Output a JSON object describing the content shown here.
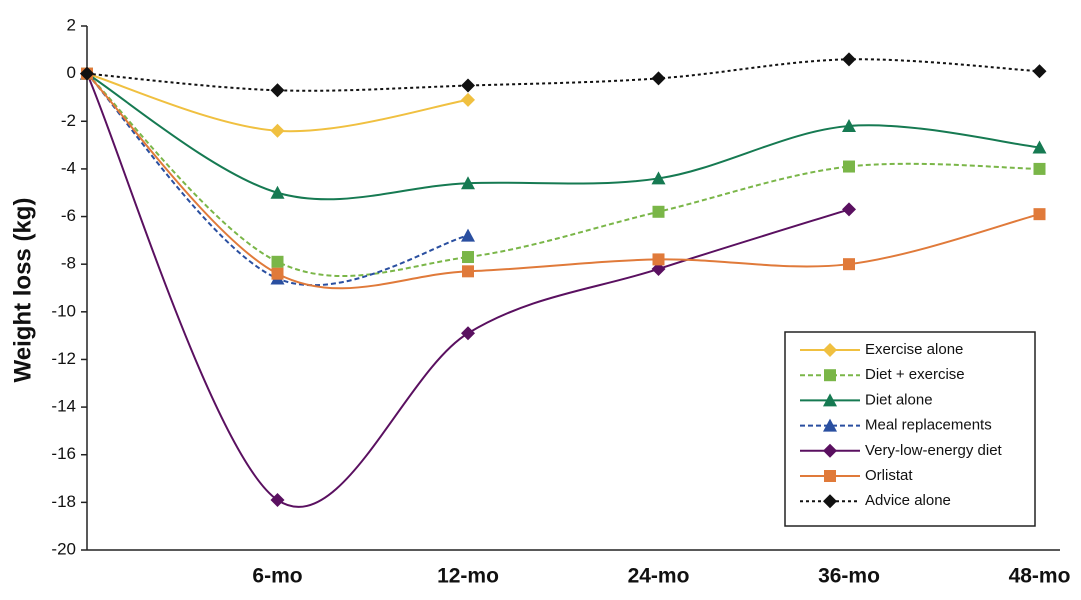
{
  "chart_data": {
    "type": "line",
    "ylabel": "Weight loss (kg)",
    "categories": [
      null,
      "6-mo",
      "12-mo",
      "24-mo",
      "36-mo",
      "48-mo"
    ],
    "ylim": [
      -20,
      2
    ],
    "yticks": [
      -20,
      -18,
      -16,
      -14,
      -12,
      -10,
      -8,
      -6,
      -4,
      -2,
      0,
      2
    ],
    "legend": "lower right",
    "series": [
      {
        "name": "Exercise alone",
        "color": "#f0c040",
        "marker": "diamond",
        "dash": false,
        "values": [
          0,
          -2.4,
          -1.1,
          null,
          null,
          null
        ]
      },
      {
        "name": "Diet + exercise",
        "color": "#7ab648",
        "marker": "square",
        "dash": true,
        "values": [
          0,
          -7.9,
          -7.7,
          -5.8,
          -3.9,
          -4.0
        ]
      },
      {
        "name": "Diet alone",
        "color": "#167a52",
        "marker": "triangle",
        "dash": false,
        "values": [
          0,
          -5.0,
          -4.6,
          -4.4,
          -2.2,
          -3.1
        ]
      },
      {
        "name": "Meal replacements",
        "color": "#2a4fa0",
        "marker": "triangle",
        "dash": true,
        "values": [
          0,
          -8.6,
          -6.8,
          null,
          null,
          null
        ]
      },
      {
        "name": "Very-low-energy diet",
        "color": "#5a1060",
        "marker": "diamond",
        "dash": false,
        "values": [
          0,
          -17.9,
          -10.9,
          -8.2,
          -5.7,
          null
        ]
      },
      {
        "name": "Orlistat",
        "color": "#e07a3a",
        "marker": "square",
        "dash": false,
        "values": [
          0,
          -8.4,
          -8.3,
          -7.8,
          -8.0,
          -5.9
        ]
      },
      {
        "name": "Advice alone",
        "color": "#111111",
        "marker": "diamond",
        "dash": "dot",
        "values": [
          0,
          -0.7,
          -0.5,
          -0.2,
          0.6,
          0.1
        ]
      }
    ]
  }
}
